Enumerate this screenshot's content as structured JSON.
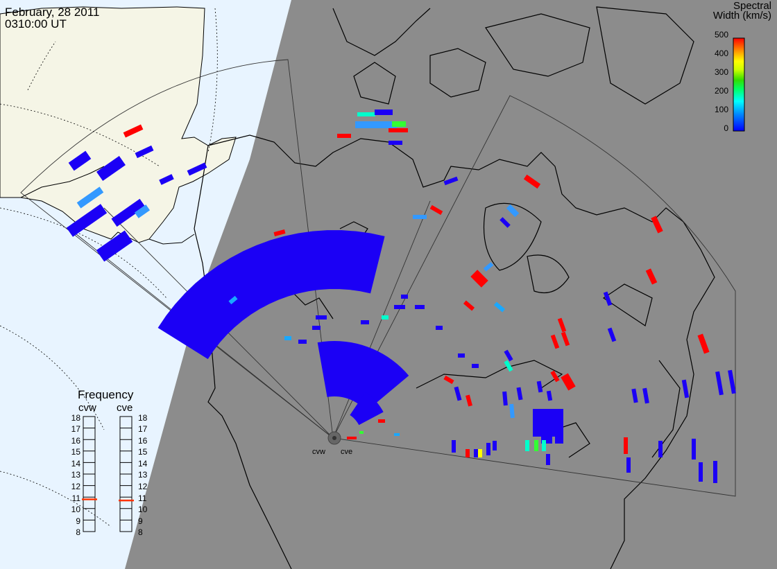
{
  "title": {
    "date": "February, 28 2011",
    "time": "0310:00 UT"
  },
  "colorbar": {
    "title_line1": "Spectral",
    "title_line2": "Width (km/s)",
    "ticks": [
      "500",
      "400",
      "300",
      "200",
      "100",
      "0"
    ],
    "colors": [
      "#0000ff",
      "#0088ff",
      "#00ffff",
      "#00ff66",
      "#33dd00",
      "#ccff00",
      "#ffff00",
      "#ffaa00",
      "#ff5500",
      "#ff0000"
    ]
  },
  "radars": [
    {
      "name": "cvw"
    },
    {
      "name": "cve"
    }
  ],
  "frequency": {
    "title": "Frequency",
    "ticks": [
      "18",
      "17",
      "16",
      "15",
      "14",
      "13",
      "12",
      "11",
      "10",
      "9",
      "8"
    ],
    "cvw_mhz": 10.8,
    "cve_mhz": 10.7
  },
  "colors": {
    "ocean_day": "#e8f4ff",
    "land_day": "#f5f5e6",
    "night": "#8c8c8c",
    "scatter": "#1b00f5",
    "cyan": "#1aa8ff",
    "red": "#ff0000"
  }
}
